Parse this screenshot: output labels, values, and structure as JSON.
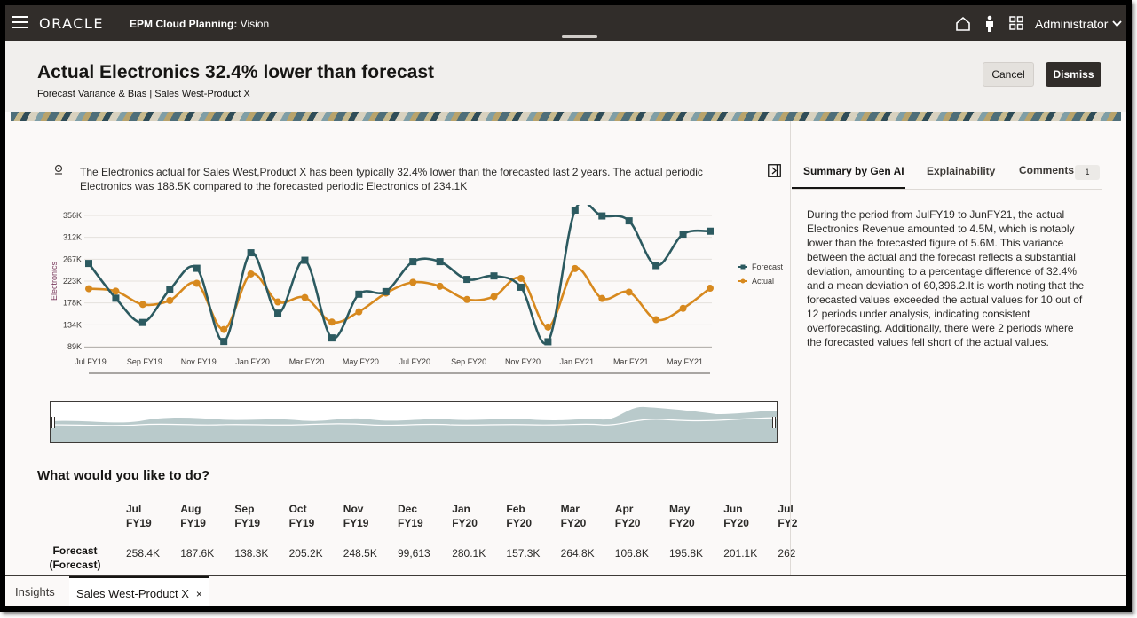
{
  "app": {
    "brand": "ORACLE",
    "product": "EPM Cloud Planning:",
    "instance": "Vision",
    "user": "Administrator",
    "icons": [
      "hamburger-icon",
      "home-icon",
      "person-icon",
      "grid-icon",
      "chevron-down-icon"
    ]
  },
  "header": {
    "title": "Actual Electronics 32.4% lower than forecast",
    "subtitle": "Forecast Variance & Bias | Sales West-Product X",
    "cancel_label": "Cancel",
    "dismiss_label": "Dismiss"
  },
  "insight": {
    "text": "The Electronics actual for Sales West,Product X has been typically 32.4% lower than the forecasted last 2 years. The actual periodic Electronics was 188.5K compared to the forecasted periodic Electronics of 234.1K"
  },
  "chart_data": {
    "type": "line",
    "ylabel": "Electronics",
    "yticks": [
      "356K",
      "312K",
      "267K",
      "223K",
      "178K",
      "134K",
      "89K"
    ],
    "ylim": [
      89000,
      356000
    ],
    "xticks": [
      "Jul FY19",
      "Sep FY19",
      "Nov FY19",
      "Jan FY20",
      "Mar FY20",
      "May FY20",
      "Jul FY20",
      "Sep FY20",
      "Nov FY20",
      "Jan FY21",
      "Mar FY21",
      "May FY21"
    ],
    "x": [
      "Jul FY19",
      "Aug FY19",
      "Sep FY19",
      "Oct FY19",
      "Nov FY19",
      "Dec FY19",
      "Jan FY20",
      "Feb FY20",
      "Mar FY20",
      "Apr FY20",
      "May FY20",
      "Jun FY20",
      "Jul FY20",
      "Aug FY20",
      "Sep FY20",
      "Oct FY20",
      "Nov FY20",
      "Dec FY20",
      "Jan FY21",
      "Feb FY21",
      "Mar FY21",
      "Apr FY21",
      "May FY21",
      "Jun FY21"
    ],
    "series": [
      {
        "name": "Forecast",
        "color": "#2c5a60",
        "marker": "square",
        "values": [
          258400,
          187600,
          138300,
          205200,
          248500,
          99613,
          280100,
          157300,
          264800,
          106800,
          195800,
          201100,
          262000,
          262000,
          226000,
          233000,
          210000,
          99000,
          378000,
          355000,
          345000,
          254000,
          318000,
          324000
        ]
      },
      {
        "name": "Actual",
        "color": "#d7891e",
        "marker": "circle",
        "values": [
          207000,
          202000,
          175000,
          183000,
          218000,
          124000,
          237000,
          180000,
          189000,
          139000,
          160000,
          198000,
          220000,
          212000,
          185000,
          191000,
          228000,
          129000,
          248000,
          187000,
          200000,
          144000,
          167000,
          208000
        ]
      }
    ],
    "legend": "right",
    "grid": true
  },
  "section": {
    "title": "What would you like to do?"
  },
  "table": {
    "row_label": "Forecast (Forecast)",
    "columns": [
      {
        "month": "Jul",
        "year": "FY19",
        "value": "258.4K"
      },
      {
        "month": "Aug",
        "year": "FY19",
        "value": "187.6K"
      },
      {
        "month": "Sep",
        "year": "FY19",
        "value": "138.3K"
      },
      {
        "month": "Oct",
        "year": "FY19",
        "value": "205.2K"
      },
      {
        "month": "Nov",
        "year": "FY19",
        "value": "248.5K"
      },
      {
        "month": "Dec",
        "year": "FY19",
        "value": "99,613"
      },
      {
        "month": "Jan",
        "year": "FY20",
        "value": "280.1K"
      },
      {
        "month": "Feb",
        "year": "FY20",
        "value": "157.3K"
      },
      {
        "month": "Mar",
        "year": "FY20",
        "value": "264.8K"
      },
      {
        "month": "Apr",
        "year": "FY20",
        "value": "106.8K"
      },
      {
        "month": "May",
        "year": "FY20",
        "value": "195.8K"
      },
      {
        "month": "Jun",
        "year": "FY20",
        "value": "201.1K"
      },
      {
        "month": "Jul",
        "year": "FY2",
        "value": "262"
      }
    ]
  },
  "panel": {
    "tabs": [
      "Summary by Gen AI",
      "Explainability",
      "Comments"
    ],
    "comments_count": "1",
    "summary": "During the period from JulFY19 to JunFY21, the actual Electronics Revenue amounted to 4.5M, which is notably lower than the forecasted figure of 5.6M. This variance between the actual and the forecast reflects a substantial deviation, amounting to a percentage difference of 32.4% and a mean deviation of 60,396.2.It is worth noting that the forecasted values exceeded the actual values for 10 out of 12 periods under analysis, indicating consistent overforecasting. Additionally, there were 2 periods where the forecasted values fell short of the actual values."
  },
  "bottom_tabs": {
    "insights": "Insights",
    "active": "Sales West-Product X",
    "close": "×"
  }
}
